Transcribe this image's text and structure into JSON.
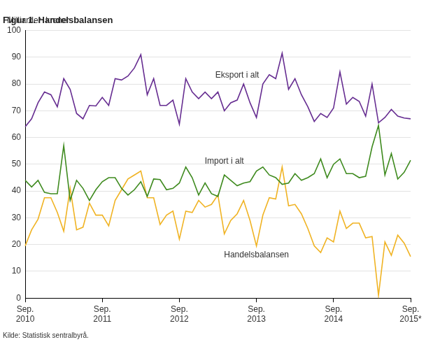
{
  "chart_data": {
    "type": "line",
    "title": "Figur 1. Handelsbalansen",
    "y_label": "Milliarder  kroner",
    "source": "Kilde: Statistisk sentralbyrå.",
    "categories": [
      "Sep. 2010",
      null,
      null,
      null,
      null,
      null,
      null,
      null,
      null,
      null,
      null,
      null,
      "Sep. 2011",
      null,
      null,
      null,
      null,
      null,
      null,
      null,
      null,
      null,
      null,
      null,
      "Sep. 2012",
      null,
      null,
      null,
      null,
      null,
      null,
      null,
      null,
      null,
      null,
      null,
      "Sep. 2013",
      null,
      null,
      null,
      null,
      null,
      null,
      null,
      null,
      null,
      null,
      null,
      "Sep. 2014",
      null,
      null,
      null,
      null,
      null,
      null,
      null,
      null,
      null,
      null,
      null,
      "Sep. 2015*"
    ],
    "series": [
      {
        "name": "Eksport i alt",
        "color": "#662d91",
        "values": [
          64,
          67,
          73,
          77,
          76,
          71.5,
          82,
          78,
          69,
          67,
          72,
          71.8,
          75,
          72,
          82,
          81.5,
          83,
          86,
          91,
          76,
          82,
          72,
          72,
          74,
          65,
          82,
          77,
          74.5,
          77,
          74.5,
          77,
          70,
          73,
          74,
          80,
          73,
          67.5,
          80,
          83.5,
          82,
          91.5,
          78,
          82,
          76,
          71.5,
          66,
          69,
          67.5,
          71,
          84.5,
          72.5,
          75,
          73.5,
          68,
          80,
          65.5,
          67.5,
          70.5,
          68,
          67.3,
          67
        ]
      },
      {
        "name": "Import i alt",
        "color": "#3e8a1e",
        "values": [
          44,
          41.5,
          44,
          39.5,
          39,
          39,
          57,
          36.5,
          44,
          41,
          36.5,
          40.5,
          43.5,
          45,
          45,
          41,
          38.5,
          40.5,
          43.5,
          38,
          44.5,
          44.3,
          40.5,
          41,
          43,
          49,
          45,
          38.5,
          43,
          39,
          38,
          46,
          44,
          42,
          43,
          43.5,
          47.5,
          49,
          46,
          45,
          42.5,
          43,
          46.5,
          44,
          45,
          46.5,
          52,
          45,
          50,
          52,
          46.5,
          46.5,
          45,
          45.5,
          56.5,
          64.5,
          46,
          54,
          44.5,
          47,
          51.5
        ]
      },
      {
        "name": "Handelsbalansen",
        "color": "#f0b323",
        "values": [
          19.5,
          25.5,
          29.5,
          37.5,
          37.5,
          32,
          25,
          41,
          25.5,
          26.5,
          35.5,
          31,
          31,
          27,
          36.5,
          40.5,
          44.5,
          46,
          47.5,
          37.5,
          37.5,
          27.5,
          31,
          32.5,
          22,
          32.5,
          32,
          36.5,
          34,
          35,
          38.5,
          24,
          29,
          31.5,
          36.5,
          29,
          19.5,
          31,
          37.5,
          37,
          49,
          34.5,
          35,
          31.5,
          26,
          19.5,
          17,
          22.5,
          21,
          32.5,
          26,
          28,
          28,
          22.5,
          23,
          1,
          21,
          16,
          23.5,
          20.5,
          15.5
        ]
      }
    ],
    "ylim": [
      0,
      100
    ],
    "yticks": [
      0,
      10,
      20,
      30,
      40,
      50,
      60,
      70,
      80,
      90,
      100
    ],
    "grid": true
  }
}
